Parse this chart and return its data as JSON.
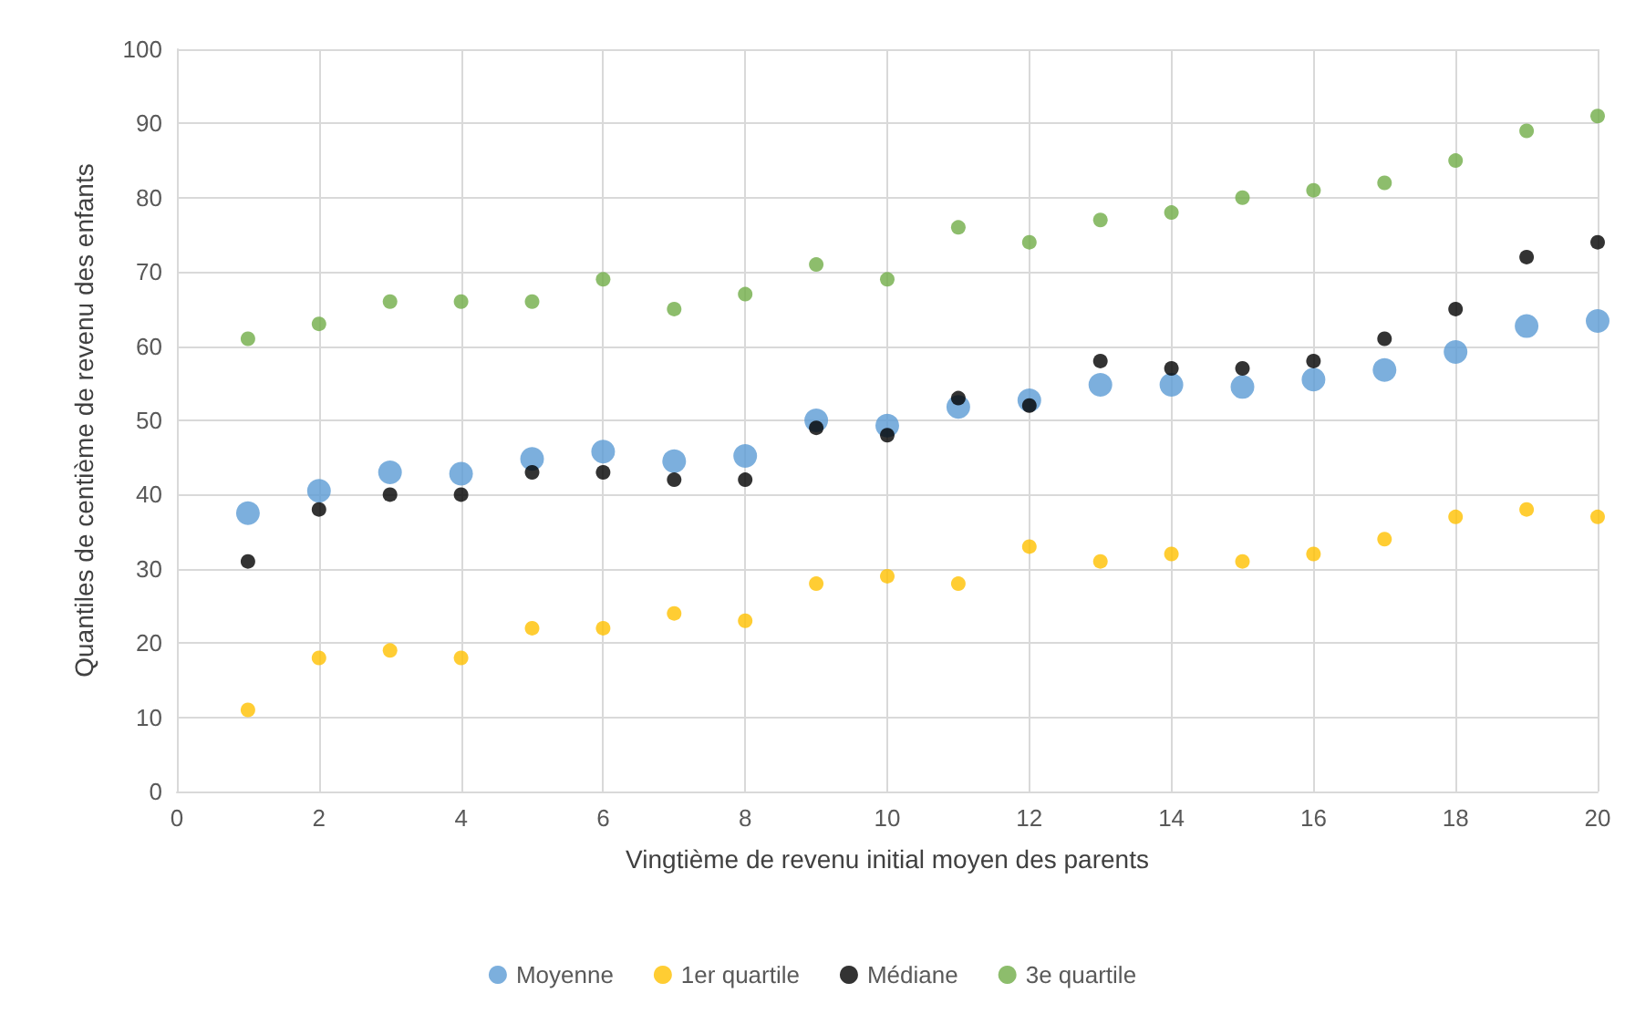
{
  "chart_data": {
    "type": "scatter",
    "xlabel": "Vingtième de revenu initial moyen des parents",
    "ylabel": "Quantiles de centième de revenu des enfants",
    "x": [
      1,
      2,
      3,
      4,
      5,
      6,
      7,
      8,
      9,
      10,
      11,
      12,
      13,
      14,
      15,
      16,
      17,
      18,
      19,
      20
    ],
    "series": [
      {
        "name": "Moyenne",
        "color": "#5b9bd5",
        "values": [
          37.5,
          40.5,
          43,
          42.8,
          44.8,
          45.8,
          44.5,
          45.2,
          50,
          49.3,
          51.8,
          52.7,
          54.8,
          54.8,
          54.5,
          55.5,
          56.8,
          59.2,
          62.7,
          63.4
        ]
      },
      {
        "name": "1er quartile",
        "color": "#ffc000",
        "values": [
          11,
          18,
          19,
          18,
          22,
          22,
          24,
          23,
          28,
          29,
          28,
          33,
          31,
          32,
          31,
          32,
          34,
          37,
          38,
          37
        ]
      },
      {
        "name": "Médiane",
        "color": "#000000",
        "values": [
          31,
          38,
          40,
          40,
          43,
          43,
          42,
          42,
          49,
          48,
          53,
          52,
          58,
          57,
          57,
          58,
          61,
          65,
          72,
          74
        ]
      },
      {
        "name": "3e quartile",
        "color": "#70ad47",
        "values": [
          61,
          63,
          66,
          66,
          66,
          69,
          65,
          67,
          71,
          69,
          76,
          74,
          77,
          78,
          80,
          81,
          82,
          85,
          89,
          91
        ]
      }
    ],
    "xlim": [
      0,
      20
    ],
    "xticks": [
      0,
      2,
      4,
      6,
      8,
      10,
      12,
      14,
      16,
      18,
      20
    ],
    "ylim": [
      0,
      100
    ],
    "yticks": [
      0,
      10,
      20,
      30,
      40,
      50,
      60,
      70,
      80,
      90,
      100
    ],
    "grid": true,
    "legend": "bottom",
    "marker": "circle"
  }
}
